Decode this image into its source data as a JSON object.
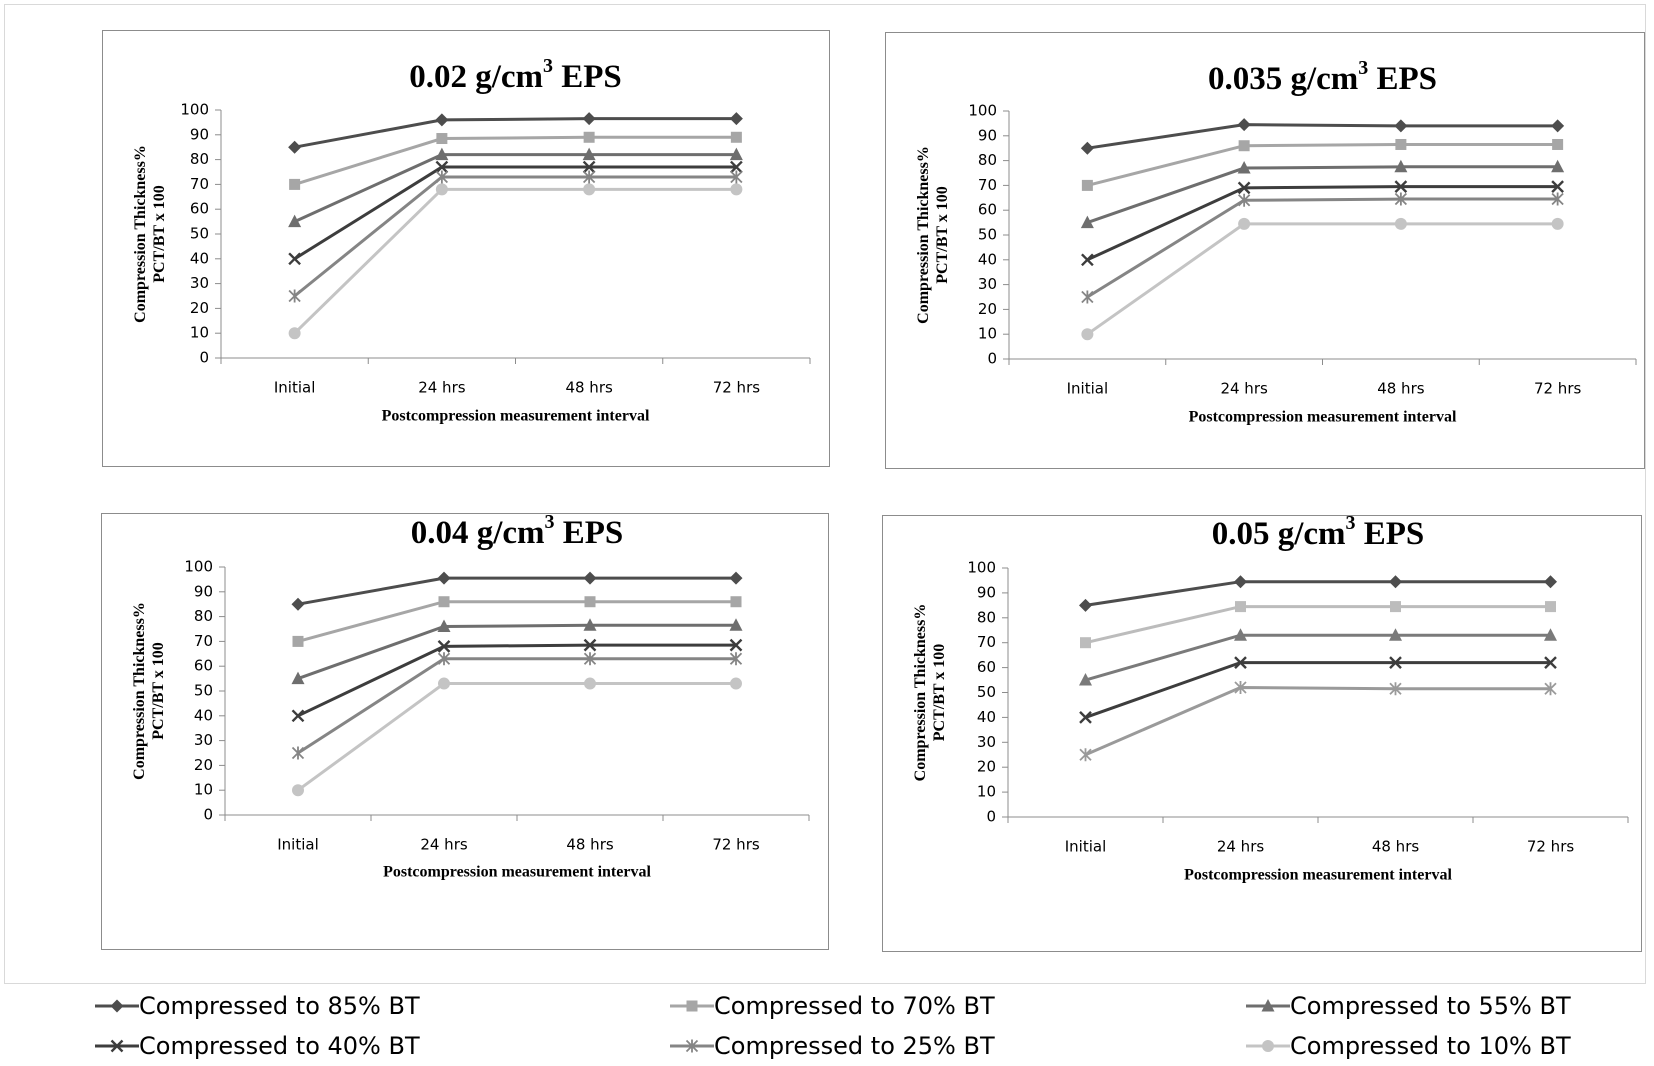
{
  "chart_data": [
    {
      "type": "line",
      "title": "0.02 g/cm³ EPS",
      "xlabel": "Postcompression measurement interval",
      "ylabel": "Compression Thickness%\nPCT/BT x 100",
      "categories": [
        "Initial",
        "24 hrs",
        "48 hrs",
        "72 hrs"
      ],
      "ylim": [
        0,
        100
      ],
      "yticks": [
        0,
        10,
        20,
        30,
        40,
        50,
        60,
        70,
        80,
        90,
        100
      ],
      "series": [
        {
          "name": "Compressed to 85% BT",
          "values": [
            85,
            96,
            96.5,
            96.5
          ]
        },
        {
          "name": "Compressed to 70% BT",
          "values": [
            70,
            88.5,
            89,
            89
          ]
        },
        {
          "name": "Compressed to 55% BT",
          "values": [
            55,
            82,
            82,
            82
          ]
        },
        {
          "name": "Compressed to 40% BT",
          "values": [
            40,
            77,
            77,
            77
          ]
        },
        {
          "name": "Compressed to 25% BT",
          "values": [
            25,
            73,
            73,
            73
          ]
        },
        {
          "name": "Compressed to 10% BT",
          "values": [
            10,
            68,
            68,
            68
          ]
        }
      ]
    },
    {
      "type": "line",
      "title": "0.035 g/cm³ EPS",
      "xlabel": "Postcompression measurement interval",
      "ylabel": "Compression Thickness%\nPCT/BT x 100",
      "categories": [
        "Initial",
        "24 hrs",
        "48 hrs",
        "72 hrs"
      ],
      "ylim": [
        0,
        100
      ],
      "yticks": [
        0,
        10,
        20,
        30,
        40,
        50,
        60,
        70,
        80,
        90,
        100
      ],
      "series": [
        {
          "name": "Compressed to 85% BT",
          "values": [
            85,
            94.5,
            94,
            94
          ]
        },
        {
          "name": "Compressed to 70% BT",
          "values": [
            70,
            86,
            86.5,
            86.5
          ]
        },
        {
          "name": "Compressed to 55% BT",
          "values": [
            55,
            77,
            77.5,
            77.5
          ]
        },
        {
          "name": "Compressed to 40% BT",
          "values": [
            40,
            69,
            69.5,
            69.5
          ]
        },
        {
          "name": "Compressed to 25% BT",
          "values": [
            25,
            64,
            64.5,
            64.5
          ]
        },
        {
          "name": "Compressed to 10% BT",
          "values": [
            10,
            54.5,
            54.5,
            54.5
          ]
        }
      ]
    },
    {
      "type": "line",
      "title": "0.04 g/cm³ EPS",
      "xlabel": "Postcompression measurement interval",
      "ylabel": "Compression Thickness%\nPCT/BT x 100",
      "categories": [
        "Initial",
        "24 hrs",
        "48 hrs",
        "72 hrs"
      ],
      "ylim": [
        0,
        100
      ],
      "yticks": [
        0,
        10,
        20,
        30,
        40,
        50,
        60,
        70,
        80,
        90,
        100
      ],
      "series": [
        {
          "name": "Compressed to 85% BT",
          "values": [
            85,
            95.5,
            95.5,
            95.5
          ]
        },
        {
          "name": "Compressed to 70% BT",
          "values": [
            70,
            86,
            86,
            86
          ]
        },
        {
          "name": "Compressed to 55% BT",
          "values": [
            55,
            76,
            76.5,
            76.5
          ]
        },
        {
          "name": "Compressed to 40% BT",
          "values": [
            40,
            68,
            68.5,
            68.5
          ]
        },
        {
          "name": "Compressed to 25% BT",
          "values": [
            25,
            63,
            63,
            63
          ]
        },
        {
          "name": "Compressed to 10% BT",
          "values": [
            10,
            53,
            53,
            53
          ]
        }
      ]
    },
    {
      "type": "line",
      "title": "0.05 g/cm³ EPS",
      "xlabel": "Postcompression measurement interval",
      "ylabel": "Compression Thickness%\nPCT/BT x 100",
      "categories": [
        "Initial",
        "24 hrs",
        "48 hrs",
        "72 hrs"
      ],
      "ylim": [
        0,
        100
      ],
      "yticks": [
        0,
        10,
        20,
        30,
        40,
        50,
        60,
        70,
        80,
        90,
        100
      ],
      "series": [
        {
          "name": "Compressed to 85% BT",
          "values": [
            85,
            94.5,
            94.5,
            94.5
          ]
        },
        {
          "name": "Compressed to 70% BT",
          "values": [
            70,
            84.5,
            84.5,
            84.5
          ]
        },
        {
          "name": "Compressed to 55% BT",
          "values": [
            55,
            73,
            73,
            73
          ]
        },
        {
          "name": "Compressed to 40% BT",
          "values": [
            40,
            62,
            62,
            62
          ]
        },
        {
          "name": "Compressed to 25% BT",
          "values": [
            25,
            52,
            51.5,
            51.5
          ]
        }
      ]
    }
  ],
  "legend": {
    "items": [
      {
        "label": "Compressed to 85% BT",
        "marker": "diamond",
        "color": "#4d4d4d"
      },
      {
        "label": "Compressed to 70% BT",
        "marker": "square",
        "color": "#a6a6a6"
      },
      {
        "label": "Compressed to 55% BT",
        "marker": "triangle",
        "color": "#6e6e6e"
      },
      {
        "label": "Compressed to 40% BT",
        "marker": "x",
        "color": "#3d3d3d"
      },
      {
        "label": "Compressed to 25% BT",
        "marker": "star",
        "color": "#858585"
      },
      {
        "label": "Compressed to 10% BT",
        "marker": "circle",
        "color": "#c4c4c4"
      }
    ]
  },
  "series_styles": [
    {
      "marker": "diamond",
      "color": "#4d4d4d"
    },
    {
      "marker": "square",
      "color": "#a6a6a6"
    },
    {
      "marker": "triangle",
      "color": "#6e6e6e"
    },
    {
      "marker": "x",
      "color": "#3d3d3d"
    },
    {
      "marker": "star",
      "color": "#858585"
    },
    {
      "marker": "circle",
      "color": "#c4c4c4"
    }
  ],
  "panel4_series_styles": [
    {
      "marker": "diamond",
      "color": "#4d4d4d"
    },
    {
      "marker": "square",
      "color": "#bcbcbc"
    },
    {
      "marker": "triangle",
      "color": "#7a7a7a"
    },
    {
      "marker": "x",
      "color": "#3d3d3d"
    },
    {
      "marker": "star",
      "color": "#9a9a9a"
    }
  ]
}
